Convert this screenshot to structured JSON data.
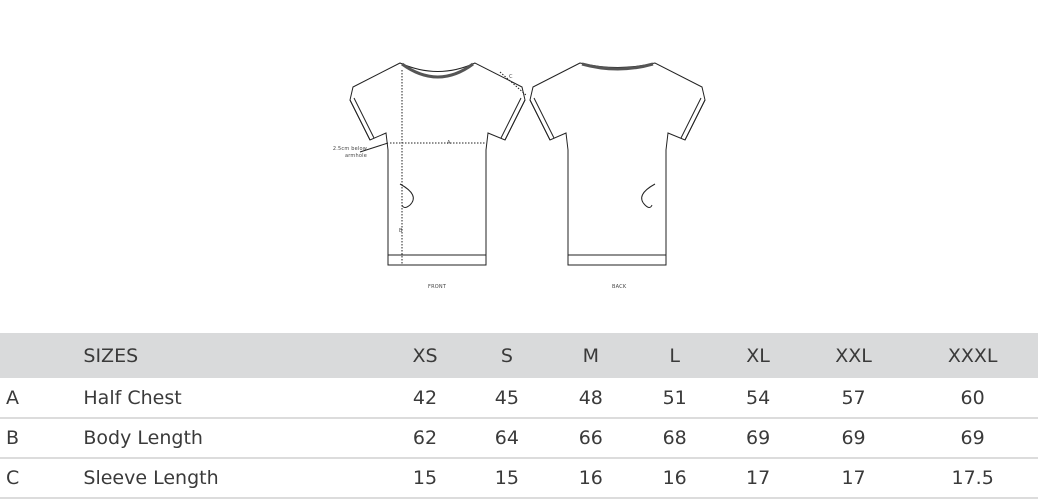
{
  "drawing": {
    "front_label": "FRONT",
    "back_label": "BACK",
    "note": "2.5cm below armhole",
    "marker_a": "A",
    "marker_b": "B",
    "marker_c": "C"
  },
  "table": {
    "header": {
      "letter": "",
      "name": "SIZES",
      "sizes": [
        "XS",
        "S",
        "M",
        "L",
        "XL",
        "XXL",
        "XXXL"
      ]
    },
    "rows": [
      {
        "letter": "A",
        "name": "Half Chest",
        "values": [
          "42",
          "45",
          "48",
          "51",
          "54",
          "57",
          "60"
        ]
      },
      {
        "letter": "B",
        "name": "Body Length",
        "values": [
          "62",
          "64",
          "66",
          "68",
          "69",
          "69",
          "69"
        ]
      },
      {
        "letter": "C",
        "name": "Sleeve Length",
        "values": [
          "15",
          "15",
          "16",
          "16",
          "17",
          "17",
          "17.5"
        ]
      }
    ]
  },
  "colors": {
    "header_bg": "#d9dadb",
    "row_divider": "#dcdcdc"
  }
}
